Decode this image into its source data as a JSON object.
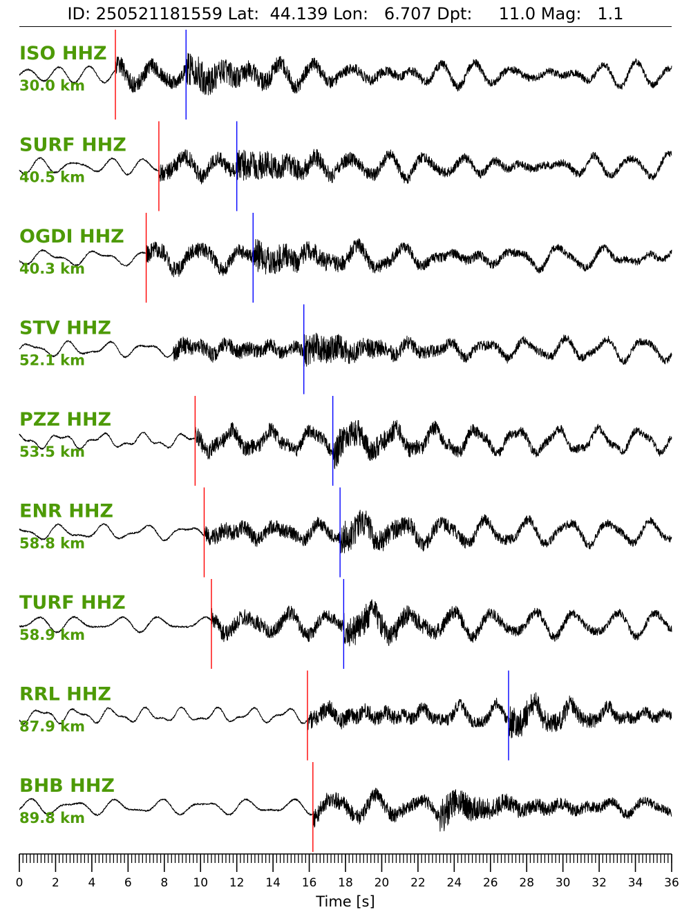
{
  "header": {
    "id_label": "ID:",
    "id": "250521181559",
    "lat_label": "Lat:",
    "lat": "44.139",
    "lon_label": "Lon:",
    "lon": "6.707",
    "dpt_label": "Dpt:",
    "dpt": "11.0",
    "mag_label": "Mag:",
    "mag": "1.1"
  },
  "chart_data": {
    "type": "line",
    "title": "ID: 250521181559 Lat:  44.139 Lon:   6.707 Dpt:    11.0 Mag:   1.1",
    "xlabel": "Time [s]",
    "ylabel": "",
    "xlim": [
      0,
      36
    ],
    "x_ticks": [
      0,
      2,
      4,
      6,
      8,
      10,
      12,
      14,
      16,
      18,
      20,
      22,
      24,
      26,
      28,
      30,
      32,
      34,
      36
    ],
    "x_minor_tick_step": 0.2,
    "grid": false,
    "colors": {
      "trace": "#000000",
      "label": "#4d9a06",
      "p_pick": "#ff0000",
      "s_pick": "#0000ff"
    },
    "series": [
      {
        "name": "ISO HHZ",
        "distance": "30.0 km",
        "p_pick": 5.3,
        "s_pick": 9.2
      },
      {
        "name": "SURF HHZ",
        "distance": "40.5 km",
        "p_pick": 7.7,
        "s_pick": 12.0
      },
      {
        "name": "OGDI HHZ",
        "distance": "40.3 km",
        "p_pick": 7.0,
        "s_pick": 12.9
      },
      {
        "name": "STV HHZ",
        "distance": "52.1 km",
        "p_pick": null,
        "s_pick": 15.7
      },
      {
        "name": "PZZ HHZ",
        "distance": "53.5 km",
        "p_pick": 9.7,
        "s_pick": 17.3
      },
      {
        "name": "ENR HHZ",
        "distance": "58.8 km",
        "p_pick": 10.2,
        "s_pick": 17.7
      },
      {
        "name": "TURF HHZ",
        "distance": "58.9 km",
        "p_pick": 10.6,
        "s_pick": 17.9
      },
      {
        "name": "RRL HHZ",
        "distance": "87.9 km",
        "p_pick": 15.9,
        "s_pick": 27.0
      },
      {
        "name": "BHB HHZ",
        "distance": "89.8 km",
        "p_pick": 16.2,
        "s_pick": null
      }
    ]
  }
}
